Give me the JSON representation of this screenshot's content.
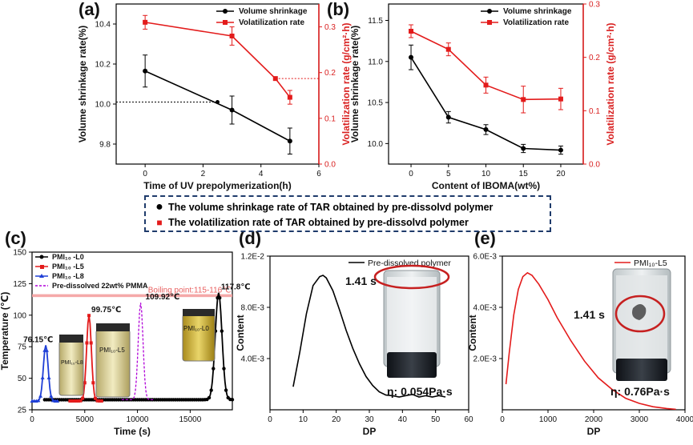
{
  "figure_labels": {
    "a": "(a)",
    "b": "(b)",
    "c": "(c)",
    "d": "(d)",
    "e": "(e)"
  },
  "shared_legend": {
    "item1": "The volume shrinkage rate of TAR obtained by pre-dissolvd polymer",
    "item2": "The volatilization rate of TAR obtained by pre-dissolvd polymer",
    "marker1": "●",
    "marker2": "■"
  },
  "colors": {
    "black": "#000000",
    "red": "#e31b1b",
    "blue": "#1f3fd6",
    "magenta": "#b000d8",
    "pink": "#f4a0a0",
    "legend_border": "#1f3b6b"
  },
  "chart_data": [
    {
      "panel": "a",
      "type": "line",
      "xlabel": "Time of UV prepolymerization(h)",
      "ylabel": "Volume shrinkage rate(%)",
      "y2label": "Volatilization rate (g/cm²·h)",
      "xlim": [
        -1,
        6
      ],
      "ylim": [
        9.7,
        10.5
      ],
      "y2lim": [
        0,
        0.35
      ],
      "xticks": [
        "0",
        "2",
        "4",
        "6"
      ],
      "yticks": [
        "9.8",
        "10.0",
        "10.2",
        "10.4"
      ],
      "y2ticks": [
        "0.0",
        "0.1",
        "0.2",
        "0.3"
      ],
      "legend": [
        "Volume shrinkage",
        "Volatilization rate"
      ],
      "series": [
        {
          "name": "Volume shrinkage",
          "axis": "left",
          "color": "#000000",
          "marker": "circle",
          "x": [
            0,
            3,
            5
          ],
          "y": [
            10.165,
            9.97,
            9.815
          ],
          "err": [
            0.08,
            0.07,
            0.065
          ]
        },
        {
          "name": "Volatilization rate",
          "axis": "right",
          "color": "#e31b1b",
          "marker": "square",
          "x": [
            0,
            3,
            4.5,
            5
          ],
          "y": [
            0.31,
            0.28,
            0.187,
            0.146
          ],
          "err": [
            0.015,
            0.02,
            0.0,
            0.015
          ]
        }
      ],
      "marker_point": {
        "x": 2.5,
        "y": 10.01
      },
      "reference_lines": [
        {
          "axis": "left",
          "y": 10.01,
          "x_from": -1,
          "x_to": 2.5
        },
        {
          "axis": "right",
          "y": 0.187,
          "x_from": 4.5,
          "x_to": 6
        }
      ]
    },
    {
      "panel": "b",
      "type": "line",
      "xlabel": "Content of IBOMA(wt%)",
      "ylabel": "Volume shrinkage rate(%)",
      "y2label": "Volatilization rate (g/cm²·h)",
      "xlim": [
        -3,
        23
      ],
      "ylim": [
        9.75,
        11.7
      ],
      "y2lim": [
        0,
        0.3
      ],
      "xticks": [
        "0",
        "5",
        "10",
        "15",
        "20"
      ],
      "yticks": [
        "10.0",
        "10.5",
        "11.0",
        "11.5"
      ],
      "y2ticks": [
        "0.0",
        "0.1",
        "0.2",
        "0.3"
      ],
      "legend": [
        "Volume shrinkage",
        "Volatilization rate"
      ],
      "series": [
        {
          "name": "Volume shrinkage",
          "axis": "left",
          "color": "#000000",
          "marker": "circle",
          "x": [
            0,
            5,
            10,
            15,
            20
          ],
          "y": [
            11.05,
            10.32,
            10.17,
            9.94,
            9.92
          ],
          "err": [
            0.15,
            0.07,
            0.06,
            0.05,
            0.05
          ]
        },
        {
          "name": "Volatilization rate",
          "axis": "right",
          "color": "#e31b1b",
          "marker": "square",
          "x": [
            0,
            5,
            10,
            15,
            20
          ],
          "y": [
            0.249,
            0.215,
            0.148,
            0.121,
            0.122
          ],
          "err": [
            0.012,
            0.012,
            0.015,
            0.025,
            0.02
          ]
        }
      ]
    },
    {
      "panel": "c",
      "type": "line",
      "xlabel": "Time (s)",
      "ylabel": "Temperature (℃)",
      "xlim": [
        0,
        19000
      ],
      "ylim": [
        25,
        150
      ],
      "xticks": [
        "0",
        "5000",
        "10000",
        "15000"
      ],
      "yticks": [
        "25",
        "50",
        "75",
        "100",
        "125",
        "150"
      ],
      "legend": [
        "PMI₁₀ -L0",
        "PMI₁₀ -L5",
        "PMI₁₀ -L8",
        "Pre-dissolved 22wt% PMMA"
      ],
      "boiling_band": {
        "y_from": 115,
        "y_to": 116,
        "label": "Boiling point:115-116℃"
      },
      "peaks": [
        {
          "name": "PMI₁₀ -L0",
          "color": "#000000",
          "peak_x": 17700,
          "peak_y": 117.8,
          "label": "117.8℃",
          "baseline": 33
        },
        {
          "name": "PMI₁₀ -L5",
          "color": "#e31b1b",
          "peak_x": 5400,
          "peak_y": 99.75,
          "label": "99.75℃",
          "baseline": 32
        },
        {
          "name": "PMI₁₀ -L8",
          "color": "#1f3fd6",
          "peak_x": 1300,
          "peak_y": 76.15,
          "label": "76.15℃",
          "baseline": 32
        },
        {
          "name": "Pre-dissolved 22wt% PMMA",
          "color": "#b000d8",
          "peak_x": 10300,
          "peak_y": 109.92,
          "label": "109.92℃",
          "baseline": 33
        }
      ],
      "vial_labels": [
        "PMI₁₀-L8",
        "PMI₁₀-L5",
        "PMI₁₀-L0"
      ]
    },
    {
      "panel": "d",
      "type": "line",
      "xlabel": "DP",
      "ylabel": "Content",
      "xlim": [
        0,
        60
      ],
      "ylim": [
        0,
        0.012
      ],
      "xticks": [
        "0",
        "10",
        "20",
        "30",
        "40",
        "50",
        "60"
      ],
      "yticks": [
        "4.0E-3",
        "8.0E-3",
        "1.2E-2"
      ],
      "legend": [
        "Pre-dissolved polymer"
      ],
      "series": [
        {
          "name": "Pre-dissolved polymer",
          "color": "#000000",
          "x": [
            7,
            9,
            11,
            13,
            15,
            16,
            17,
            19,
            21,
            23,
            25,
            27,
            29,
            31,
            33,
            35,
            37,
            39,
            41,
            43,
            45,
            47,
            49,
            51,
            53
          ],
          "y": [
            0.0018,
            0.0045,
            0.0075,
            0.0097,
            0.0104,
            0.0105,
            0.0103,
            0.0093,
            0.0078,
            0.0062,
            0.0048,
            0.0036,
            0.0026,
            0.0019,
            0.0014,
            0.00115,
            0.0011,
            0.001,
            0.0011,
            0.0012,
            0.001,
            0.0011,
            0.001,
            0.0011,
            0.001
          ]
        }
      ],
      "annotations": {
        "time": "1.41 s",
        "viscosity": "η: 0.054Pa·s"
      }
    },
    {
      "panel": "e",
      "type": "line",
      "xlabel": "DP",
      "ylabel": "Content",
      "xlim": [
        0,
        4000
      ],
      "ylim": [
        0,
        0.006
      ],
      "xticks": [
        "0",
        "1000",
        "2000",
        "3000",
        "4000"
      ],
      "yticks": [
        "2.0E-3",
        "4.0E-3",
        "6.0E-3"
      ],
      "legend": [
        "PMI₁₀-L5"
      ],
      "series": [
        {
          "name": "PMI₁₀-L5",
          "color": "#e31b1b",
          "x": [
            80,
            150,
            250,
            350,
            450,
            550,
            650,
            800,
            1000,
            1200,
            1500,
            1800,
            2100,
            2400,
            2700,
            3000,
            3300,
            3600,
            3800
          ],
          "y": [
            0.001,
            0.0022,
            0.0037,
            0.0047,
            0.0052,
            0.00535,
            0.00525,
            0.0049,
            0.0043,
            0.0036,
            0.0027,
            0.0019,
            0.00125,
            0.0008,
            0.00045,
            0.00025,
            0.00012,
            5e-05,
            2e-05
          ]
        }
      ],
      "annotations": {
        "time": "1.41 s",
        "viscosity": "η: 0.76Pa·s"
      }
    }
  ]
}
